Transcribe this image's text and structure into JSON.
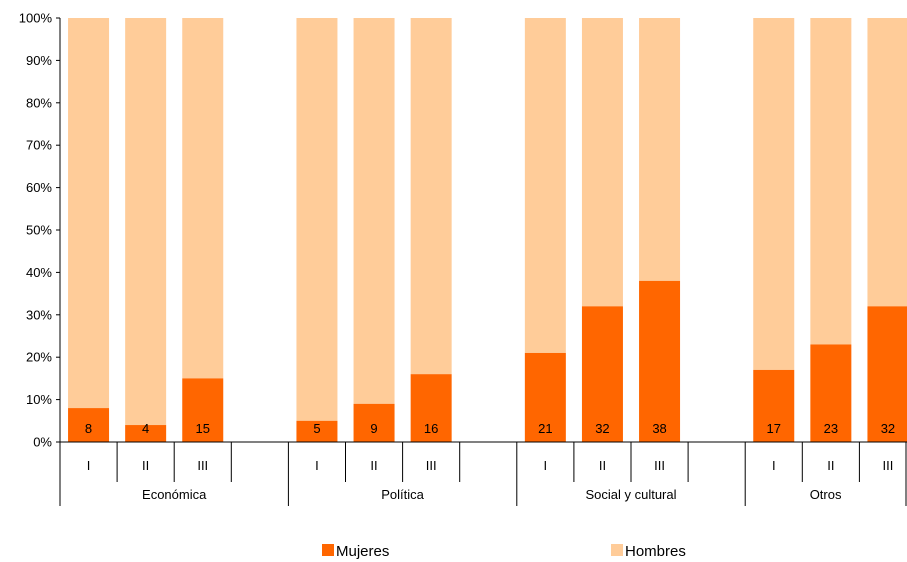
{
  "chart_data": {
    "type": "bar",
    "stacked": true,
    "percent": true,
    "y_ticks": [
      "0%",
      "10%",
      "20%",
      "30%",
      "40%",
      "50%",
      "60%",
      "70%",
      "80%",
      "90%",
      "100%"
    ],
    "ylim": [
      0,
      100
    ],
    "groups": [
      {
        "label": "Económica",
        "subcategories": [
          "I",
          "II",
          "III"
        ]
      },
      {
        "label": "Política",
        "subcategories": [
          "I",
          "II",
          "III"
        ]
      },
      {
        "label": "Social y cultural",
        "subcategories": [
          "I",
          "II",
          "III"
        ]
      },
      {
        "label": "Otros",
        "subcategories": [
          "I",
          "II",
          "III"
        ]
      }
    ],
    "series": [
      {
        "name": "Mujeres",
        "color": "#FF6600",
        "values": [
          8,
          4,
          15,
          5,
          9,
          16,
          21,
          32,
          38,
          17,
          23,
          32
        ]
      },
      {
        "name": "Hombres",
        "color": "#FFCC99",
        "values": [
          92,
          96,
          85,
          95,
          91,
          84,
          79,
          68,
          62,
          83,
          77,
          68
        ]
      }
    ],
    "data_labels": [
      "8",
      "4",
      "15",
      "5",
      "9",
      "16",
      "21",
      "32",
      "38",
      "17",
      "23",
      "32"
    ],
    "legend_position": "bottom",
    "grid": false
  }
}
